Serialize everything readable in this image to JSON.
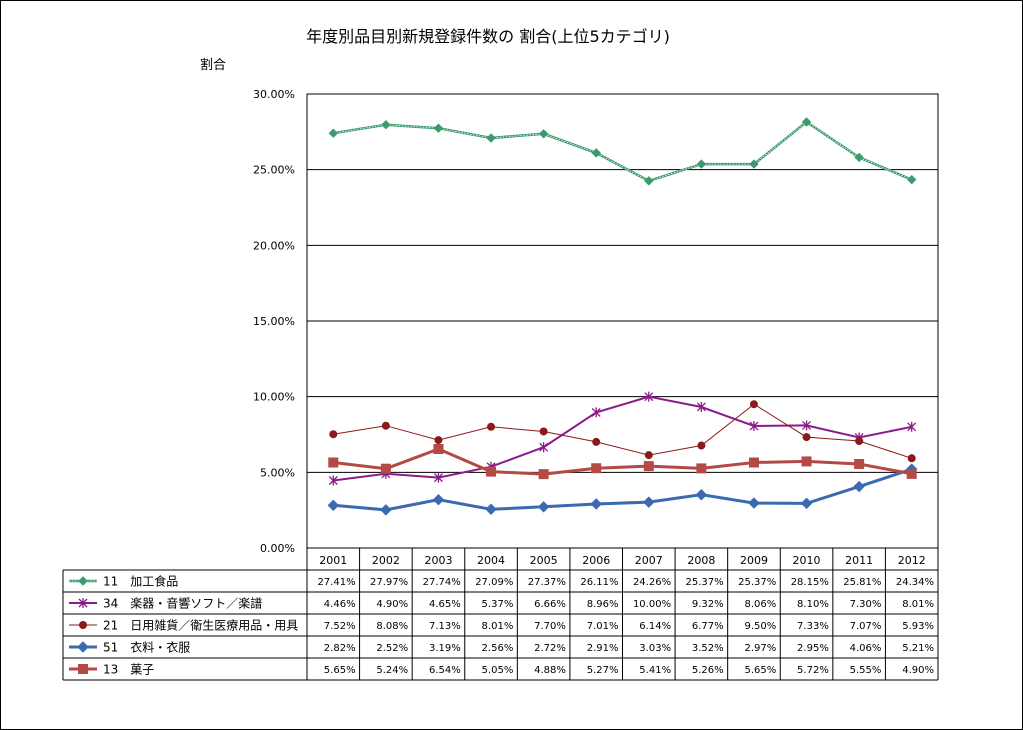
{
  "chart_data": {
    "type": "line",
    "title": "年度別品目別新規登録件数の 割合(上位5カテゴリ)",
    "ylabel": "割合",
    "ylim": [
      0,
      30
    ],
    "yticks": [
      "0.00%",
      "5.00%",
      "10.00%",
      "15.00%",
      "20.00%",
      "25.00%",
      "30.00%"
    ],
    "grid": true,
    "legend": "data-table",
    "categories": [
      "2001",
      "2002",
      "2003",
      "2004",
      "2005",
      "2006",
      "2007",
      "2008",
      "2009",
      "2010",
      "2011",
      "2012"
    ],
    "series": [
      {
        "name": "11　加工食品",
        "color": "#3c9a6e",
        "marker": "diamond-small",
        "values": [
          27.41,
          27.97,
          27.74,
          27.09,
          27.37,
          26.11,
          24.26,
          25.37,
          25.37,
          28.15,
          25.81,
          24.34
        ],
        "labels": [
          "27.41%",
          "27.97%",
          "27.74%",
          "27.09%",
          "27.37%",
          "26.11%",
          "24.26%",
          "25.37%",
          "25.37%",
          "28.15%",
          "25.81%",
          "24.34%"
        ]
      },
      {
        "name": "34　楽器・音響ソフト／楽譜",
        "color": "#8b1a8b",
        "marker": "star",
        "values": [
          4.46,
          4.9,
          4.65,
          5.37,
          6.66,
          8.96,
          10.0,
          9.32,
          8.06,
          8.1,
          7.3,
          8.01
        ],
        "labels": [
          "4.46%",
          "4.90%",
          "4.65%",
          "5.37%",
          "6.66%",
          "8.96%",
          "10.00%",
          "9.32%",
          "8.06%",
          "8.10%",
          "7.30%",
          "8.01%"
        ]
      },
      {
        "name": "21　日用雑貨／衛生医療用品・用具",
        "color": "#8b1a1a",
        "marker": "circle",
        "values": [
          7.52,
          8.08,
          7.13,
          8.01,
          7.7,
          7.01,
          6.14,
          6.77,
          9.5,
          7.33,
          7.07,
          5.93
        ],
        "labels": [
          "7.52%",
          "8.08%",
          "7.13%",
          "8.01%",
          "7.70%",
          "7.01%",
          "6.14%",
          "6.77%",
          "9.50%",
          "7.33%",
          "7.07%",
          "5.93%"
        ]
      },
      {
        "name": "51　衣料・衣服",
        "color": "#3b6ab0",
        "marker": "diamond",
        "values": [
          2.82,
          2.52,
          3.19,
          2.56,
          2.72,
          2.91,
          3.03,
          3.52,
          2.97,
          2.95,
          4.06,
          5.21
        ],
        "labels": [
          "2.82%",
          "2.52%",
          "3.19%",
          "2.56%",
          "2.72%",
          "2.91%",
          "3.03%",
          "3.52%",
          "2.97%",
          "2.95%",
          "4.06%",
          "5.21%"
        ]
      },
      {
        "name": "13　菓子",
        "color": "#b34a45",
        "marker": "square",
        "values": [
          5.65,
          5.24,
          6.54,
          5.05,
          4.88,
          5.27,
          5.41,
          5.26,
          5.65,
          5.72,
          5.55,
          4.9
        ],
        "labels": [
          "5.65%",
          "5.24%",
          "6.54%",
          "5.05%",
          "4.88%",
          "5.27%",
          "5.41%",
          "5.26%",
          "5.65%",
          "5.72%",
          "5.55%",
          "4.90%"
        ]
      }
    ]
  }
}
